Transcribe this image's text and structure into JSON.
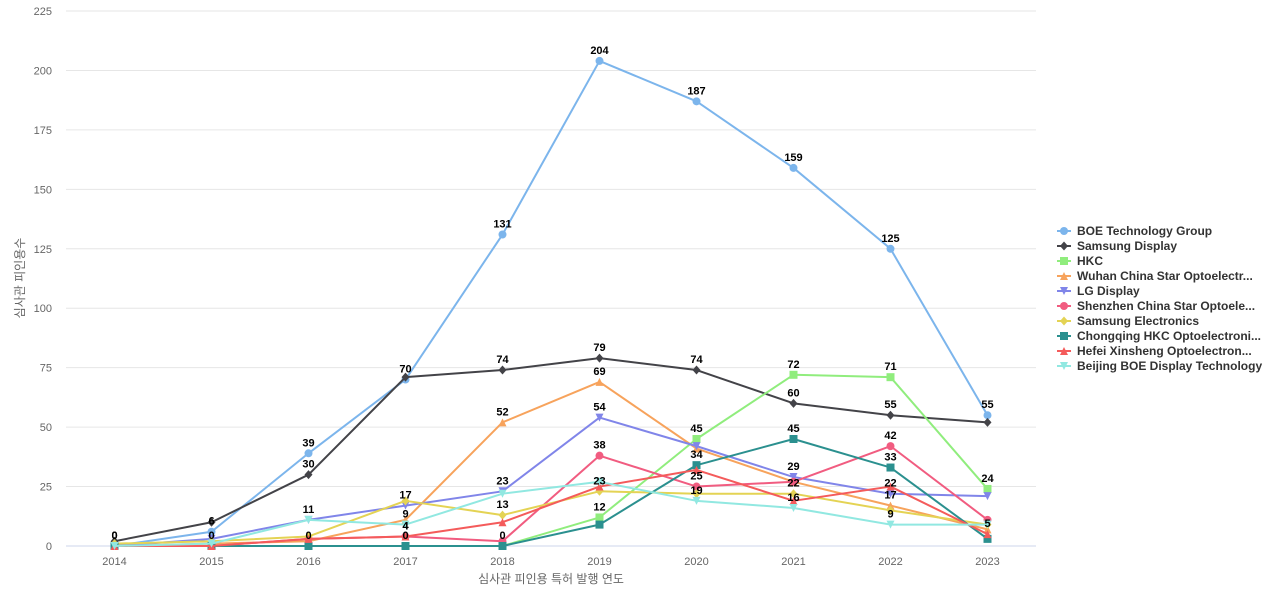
{
  "chart_data": {
    "type": "line",
    "title": "",
    "xlabel": "심사관 피인용 특허 발행 연도",
    "ylabel": "심사관 피인용수",
    "ylim": [
      0,
      225
    ],
    "yticks": [
      0,
      25,
      50,
      75,
      100,
      125,
      150,
      175,
      200,
      225
    ],
    "grid": true,
    "legend_position": "right",
    "categories": [
      "2014",
      "2015",
      "2016",
      "2017",
      "2018",
      "2019",
      "2020",
      "2021",
      "2022",
      "2023"
    ],
    "series": [
      {
        "name": "BOE Technology Group",
        "color": "#7cb5ec",
        "marker": "circle",
        "values": [
          0,
          6,
          39,
          70,
          131,
          204,
          187,
          159,
          125,
          55
        ],
        "labels": [
          true,
          true,
          true,
          true,
          true,
          true,
          true,
          true,
          true,
          true
        ]
      },
      {
        "name": "Samsung Display",
        "color": "#434348",
        "marker": "diamond",
        "values": [
          2,
          10,
          30,
          71,
          74,
          79,
          74,
          60,
          55,
          52
        ],
        "labels": [
          false,
          false,
          true,
          false,
          true,
          true,
          true,
          true,
          true,
          false
        ]
      },
      {
        "name": "HKC",
        "color": "#90ed7d",
        "marker": "square",
        "values": [
          0,
          0,
          0,
          0,
          0,
          12,
          45,
          72,
          71,
          24
        ],
        "labels": [
          false,
          false,
          false,
          false,
          false,
          true,
          true,
          true,
          true,
          true
        ]
      },
      {
        "name": "Wuhan China Star Optoelectr...",
        "color": "#f7a35c",
        "marker": "triangle",
        "values": [
          0,
          1,
          2,
          11,
          52,
          69,
          41,
          27,
          17,
          7
        ],
        "labels": [
          false,
          false,
          false,
          false,
          true,
          true,
          false,
          false,
          true,
          false
        ]
      },
      {
        "name": "LG Display",
        "color": "#8085e9",
        "marker": "triangle-down",
        "values": [
          0,
          3,
          11,
          17,
          23,
          54,
          42,
          29,
          22,
          21
        ],
        "labels": [
          false,
          false,
          true,
          true,
          true,
          true,
          false,
          true,
          true,
          false
        ]
      },
      {
        "name": "Shenzhen China Star Optoele...",
        "color": "#f15c80",
        "marker": "circle",
        "values": [
          0,
          0,
          3,
          4,
          2,
          38,
          25,
          27,
          42,
          11
        ],
        "labels": [
          false,
          true,
          false,
          true,
          false,
          true,
          true,
          false,
          true,
          false
        ]
      },
      {
        "name": "Samsung Electronics",
        "color": "#e4d354",
        "marker": "diamond",
        "values": [
          1,
          2,
          4,
          19,
          13,
          23,
          22,
          22,
          15,
          9
        ],
        "labels": [
          false,
          false,
          false,
          false,
          true,
          true,
          false,
          true,
          false,
          false
        ]
      },
      {
        "name": "Chongqing HKC Optoelectroni...",
        "color": "#2b908f",
        "marker": "square",
        "values": [
          0,
          0,
          0,
          0,
          0,
          9,
          34,
          45,
          33,
          3
        ],
        "labels": [
          true,
          false,
          true,
          true,
          true,
          false,
          true,
          true,
          true,
          false
        ]
      },
      {
        "name": "Hefei Xinsheng Optoelectron...",
        "color": "#f45b5b",
        "marker": "triangle",
        "values": [
          0,
          0,
          3,
          4,
          10,
          25,
          32,
          19,
          25,
          5
        ],
        "labels": [
          false,
          false,
          false,
          true,
          false,
          false,
          false,
          false,
          false,
          true
        ]
      },
      {
        "name": "Beijing BOE Display Technology",
        "color": "#91e8e1",
        "marker": "triangle-down",
        "values": [
          0,
          1,
          11,
          9,
          22,
          27,
          19,
          16,
          9,
          9
        ],
        "labels": [
          false,
          false,
          false,
          true,
          false,
          false,
          true,
          true,
          true,
          false
        ]
      }
    ],
    "legend": [
      "BOE Technology Group",
      "Samsung Display",
      "HKC",
      "Wuhan China Star Optoelectr...",
      "LG Display",
      "Shenzhen China Star Optoele...",
      "Samsung Electronics",
      "Chongqing HKC Optoelectroni...",
      "Hefei Xinsheng Optoelectron...",
      "Beijing BOE Display Technology"
    ]
  }
}
